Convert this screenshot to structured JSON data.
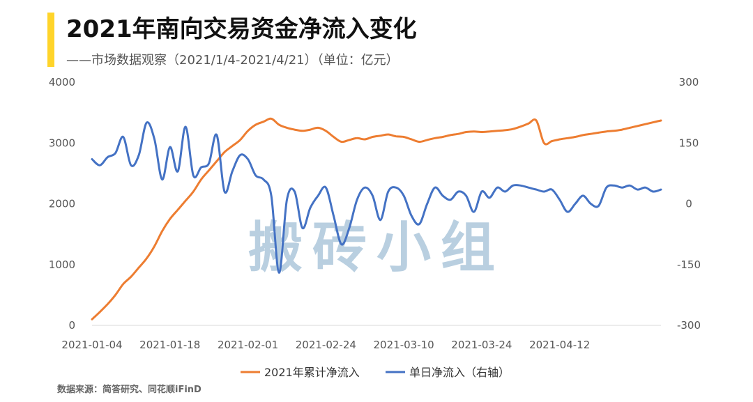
{
  "header": {
    "title": "2021年南向交易资金净流入变化",
    "subtitle": "——市场数据观察（2021/1/4-2021/4/21）（单位：亿元）"
  },
  "watermark": "搬砖小组",
  "source": "数据来源：简答研究、同花顺iFinD",
  "colors": {
    "accent": "#FFD42A",
    "cumulative": "#ED7D31",
    "daily": "#4472C4",
    "axis": "#D9D9D9"
  },
  "chart_data": {
    "type": "line",
    "x_range": [
      0,
      73
    ],
    "x_ticks": [
      {
        "index": 0,
        "label": "2021-01-04"
      },
      {
        "index": 10,
        "label": "2021-01-18"
      },
      {
        "index": 20,
        "label": "2021-02-01"
      },
      {
        "index": 30,
        "label": "2021-02-24"
      },
      {
        "index": 40,
        "label": "2021-03-10"
      },
      {
        "index": 50,
        "label": "2021-03-24"
      },
      {
        "index": 60,
        "label": "2021-04-12"
      }
    ],
    "y_left": {
      "range": [
        0,
        4000
      ],
      "ticks": [
        0,
        1000,
        2000,
        3000,
        4000
      ]
    },
    "y_right": {
      "range": [
        -300,
        300
      ],
      "ticks": [
        -300,
        -150,
        0,
        150,
        300
      ]
    },
    "grid": false,
    "legend_position": "bottom",
    "series": [
      {
        "name": "2021年累计净流入",
        "axis": "left",
        "color": "#ED7D31",
        "values": [
          100,
          220,
          350,
          500,
          680,
          800,
          950,
          1100,
          1300,
          1550,
          1750,
          1900,
          2050,
          2200,
          2400,
          2550,
          2700,
          2850,
          2950,
          3050,
          3200,
          3300,
          3350,
          3400,
          3300,
          3250,
          3220,
          3200,
          3220,
          3250,
          3200,
          3100,
          3020,
          3050,
          3080,
          3060,
          3100,
          3120,
          3140,
          3110,
          3100,
          3060,
          3020,
          3050,
          3080,
          3100,
          3130,
          3150,
          3180,
          3190,
          3180,
          3190,
          3200,
          3210,
          3230,
          3270,
          3320,
          3370,
          3000,
          3030,
          3060,
          3080,
          3100,
          3130,
          3150,
          3170,
          3190,
          3200,
          3220,
          3250,
          3280,
          3310,
          3340,
          3370
        ]
      },
      {
        "name": "单日净流入（右轴）",
        "axis": "right",
        "color": "#4472C4",
        "values": [
          110,
          95,
          115,
          125,
          165,
          95,
          120,
          200,
          160,
          60,
          140,
          80,
          190,
          70,
          90,
          100,
          170,
          30,
          80,
          120,
          110,
          70,
          60,
          20,
          -170,
          10,
          30,
          -60,
          -10,
          20,
          40,
          -30,
          -100,
          -60,
          10,
          40,
          20,
          -40,
          30,
          40,
          20,
          -30,
          -50,
          0,
          40,
          20,
          10,
          30,
          20,
          -20,
          30,
          15,
          40,
          30,
          45,
          45,
          40,
          35,
          30,
          35,
          10,
          -20,
          0,
          20,
          0,
          -5,
          40,
          45,
          40,
          45,
          35,
          40,
          30,
          35
        ]
      }
    ]
  }
}
